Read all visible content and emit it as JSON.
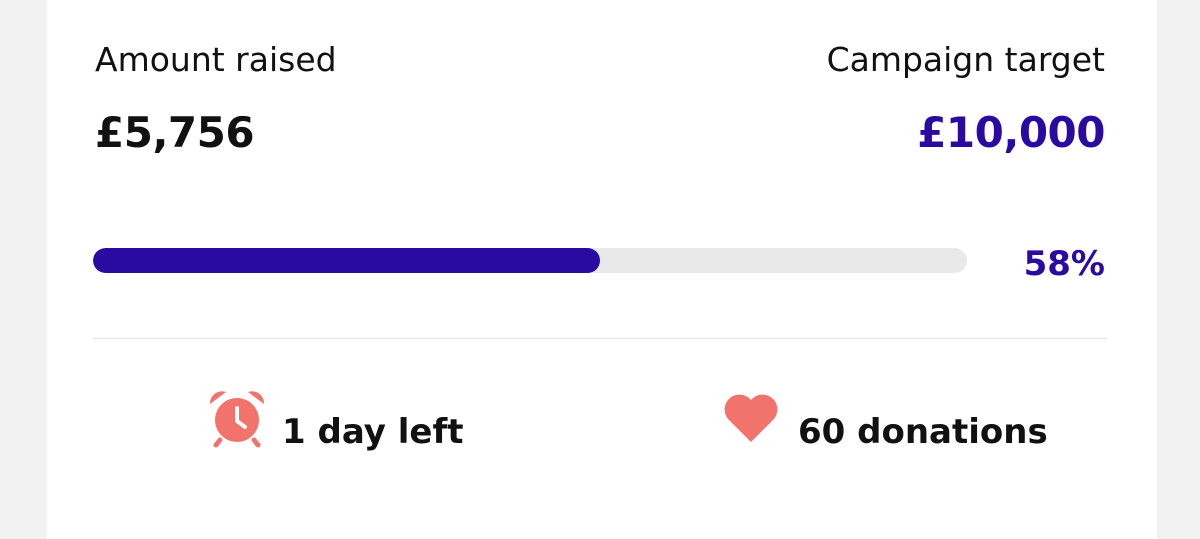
{
  "raised": {
    "label": "Amount raised",
    "amount": "£5,756"
  },
  "target": {
    "label": "Campaign target",
    "amount": "£10,000"
  },
  "progress": {
    "value": 58,
    "label": "58%"
  },
  "stats": {
    "time_left": "1 day left",
    "donations": "60 donations"
  }
}
